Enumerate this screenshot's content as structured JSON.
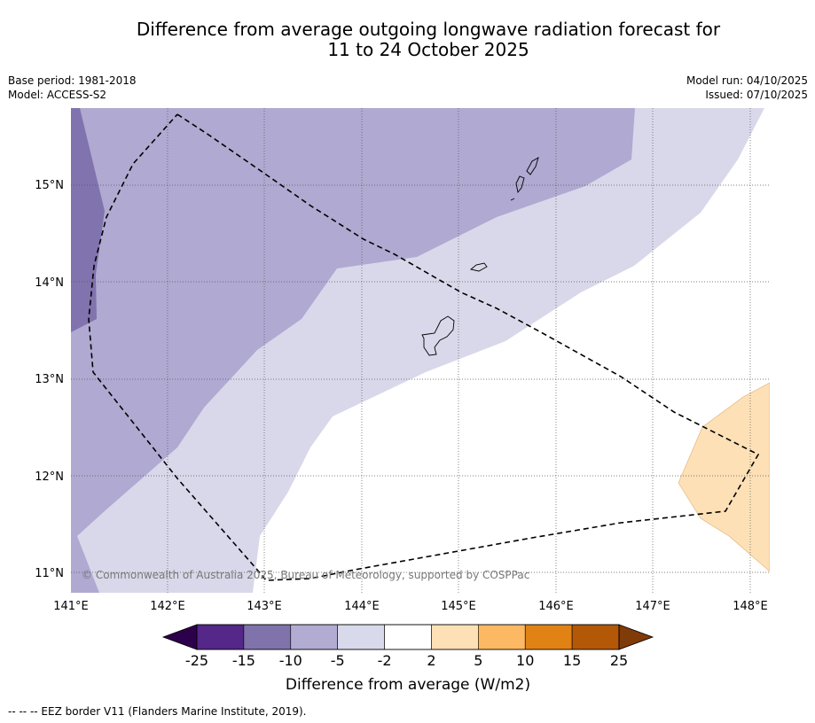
{
  "title": {
    "line1": "Difference from average outgoing longwave radiation forecast for",
    "line2": "11 to 24 October 2025"
  },
  "meta": {
    "base_period": "Base period: 1981-2018",
    "model": "Model: ACCESS-S2",
    "model_run": "Model run: 04/10/2025",
    "issued": "Issued: 07/10/2025"
  },
  "map": {
    "lat_ticks": [
      "15°N",
      "14°N",
      "13°N",
      "12°N",
      "11°N"
    ],
    "lon_ticks": [
      "141°E",
      "142°E",
      "143°E",
      "144°E",
      "145°E",
      "146°E",
      "147°E",
      "148°E"
    ],
    "copyright": "© Commonwealth of Australia 2025, Bureau of Meteorology, supported by COSPPac",
    "colors": {
      "m15": "#8173ae",
      "m10": "#b0a9d1",
      "m5": "#d8d8ea",
      "p2": "#fde0b6",
      "eez": "#000000"
    }
  },
  "colorbar": {
    "ticks": [
      "-25",
      "-15",
      "-10",
      "-5",
      "-2",
      "2",
      "5",
      "10",
      "15",
      "25"
    ],
    "colors": [
      "#2d004b",
      "#542788",
      "#8073ac",
      "#b2abd2",
      "#d8daeb",
      "#ffffff",
      "#fee0b6",
      "#fdb863",
      "#e08214",
      "#b35806",
      "#7f3b08"
    ],
    "label": "Difference from average (W/m2)"
  },
  "legend": {
    "eez_line": "-- -- -- EEZ border V11 (Flanders Marine Institute, 2019)."
  }
}
